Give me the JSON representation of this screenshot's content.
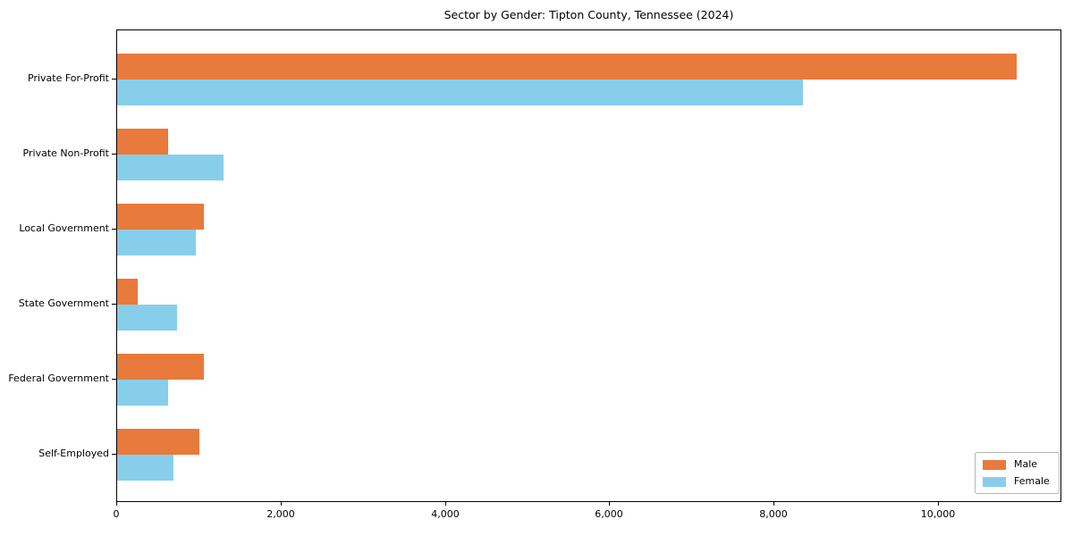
{
  "title": "Sector by Gender: Tipton County, Tennessee (2024)",
  "chart_data": {
    "type": "bar",
    "orientation": "horizontal",
    "title": "Sector by Gender: Tipton County, Tennessee (2024)",
    "xlabel": "",
    "ylabel": "",
    "categories": [
      "Private For-Profit",
      "Private Non-Profit",
      "Local Government",
      "State Government",
      "Federal Government",
      "Self-Employed"
    ],
    "series": [
      {
        "name": "Male",
        "color": "#E87A3C",
        "values": [
          10950,
          620,
          1050,
          250,
          1060,
          1000
        ]
      },
      {
        "name": "Female",
        "color": "#87CEEB",
        "values": [
          8350,
          1290,
          960,
          730,
          615,
          690
        ]
      }
    ],
    "xlim": [
      0,
      11500
    ],
    "xticks": [
      0,
      2000,
      4000,
      6000,
      8000,
      10000
    ],
    "xtick_labels": [
      "0",
      "2,000",
      "4,000",
      "6,000",
      "8,000",
      "10,000"
    ],
    "grid": false,
    "legend": {
      "position": "lower right",
      "entries": [
        "Male",
        "Female"
      ]
    }
  }
}
